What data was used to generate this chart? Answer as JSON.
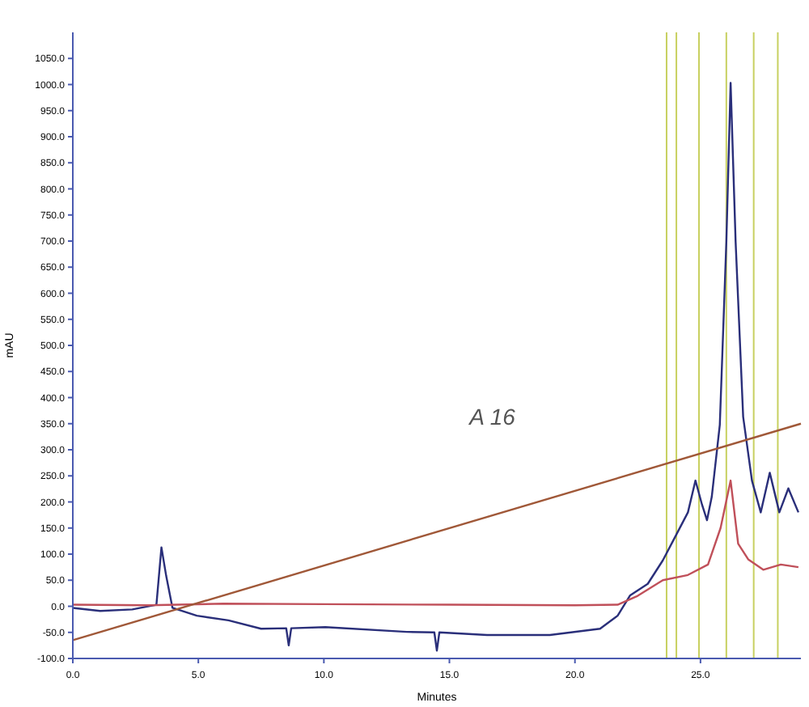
{
  "chart_data": {
    "type": "line",
    "xlabel": "Minutes",
    "ylabel": "mAU",
    "annotations": [
      "A 16"
    ],
    "xlim": [
      0,
      29
    ],
    "ylim": [
      -100,
      1100
    ],
    "xticks": [
      {
        "value": 0,
        "label": "0.0"
      },
      {
        "value": 5,
        "label": "5.0"
      },
      {
        "value": 10,
        "label": "10.0"
      },
      {
        "value": 15,
        "label": "15.0"
      },
      {
        "value": 20,
        "label": "20.0"
      },
      {
        "value": 25,
        "label": "25.0"
      }
    ],
    "yticks": [
      {
        "value": -100,
        "label": "-100.0"
      },
      {
        "value": -50,
        "label": "-50.0"
      },
      {
        "value": 0,
        "label": "0.0"
      },
      {
        "value": 50,
        "label": "50.0"
      },
      {
        "value": 100,
        "label": "100.0"
      },
      {
        "value": 150,
        "label": "150.0"
      },
      {
        "value": 200,
        "label": "200.0"
      },
      {
        "value": 250,
        "label": "250.0"
      },
      {
        "value": 300,
        "label": "300.0"
      },
      {
        "value": 350,
        "label": "350.0"
      },
      {
        "value": 400,
        "label": "400.0"
      },
      {
        "value": 450,
        "label": "450.0"
      },
      {
        "value": 500,
        "label": "500.0"
      },
      {
        "value": 550,
        "label": "550.0"
      },
      {
        "value": 600,
        "label": "600.0"
      },
      {
        "value": 650,
        "label": "650.0"
      },
      {
        "value": 700,
        "label": "700.0"
      },
      {
        "value": 750,
        "label": "750.0"
      },
      {
        "value": 800,
        "label": "800.0"
      },
      {
        "value": 850,
        "label": "850.0"
      },
      {
        "value": 900,
        "label": "900.0"
      },
      {
        "value": 950,
        "label": "950.0"
      },
      {
        "value": 1000,
        "label": "1000.0"
      },
      {
        "value": 1050,
        "label": "1050.0"
      }
    ],
    "grid": false,
    "marker": "none",
    "line_style": "solid",
    "ref_lines": [
      {
        "axis": "x",
        "value": 23.65,
        "color": "#c8d060"
      },
      {
        "axis": "x",
        "value": 24.04,
        "color": "#c8d060"
      },
      {
        "axis": "x",
        "value": 24.94,
        "color": "#c8d060"
      },
      {
        "axis": "x",
        "value": 26.03,
        "color": "#c8d060"
      },
      {
        "axis": "x",
        "value": 27.12,
        "color": "#c8d060"
      },
      {
        "axis": "x",
        "value": 28.08,
        "color": "#c8d060"
      }
    ],
    "series": [
      {
        "color": "#2a2f7a",
        "x": [
          0,
          1.09,
          2.37,
          3.33,
          3.53,
          3.72,
          3.97,
          4.94,
          6.2,
          7.5,
          8.5,
          8.6,
          8.7,
          10.06,
          13.3,
          14.4,
          14.5,
          14.6,
          16.5,
          19.0,
          21,
          21.7,
          22.2,
          22.9,
          23.5,
          24.0,
          24.5,
          24.8,
          25.06,
          25.26,
          25.45,
          25.77,
          26.03,
          26.2,
          26.4,
          26.7,
          27.05,
          27.4,
          27.76,
          28.14,
          28.5,
          28.9
        ],
        "values": [
          -3,
          -9,
          -6,
          3,
          113,
          58,
          -3,
          -18,
          -27,
          -43,
          -42,
          -75,
          -42,
          -40,
          -49,
          -50,
          -85,
          -50,
          -55,
          -55,
          -43,
          -18,
          21,
          43,
          88,
          134,
          180,
          241,
          195,
          165,
          210,
          348,
          698,
          1003,
          698,
          363,
          241,
          180,
          256,
          180,
          226,
          180
        ]
      },
      {
        "color": "#c0505a",
        "x": [
          0,
          3,
          6,
          10,
          15,
          20,
          21.7,
          22.5,
          23.5,
          24.5,
          25.3,
          25.8,
          26.2,
          26.5,
          26.9,
          27.5,
          28.2,
          28.9
        ],
        "values": [
          3,
          2,
          5,
          4,
          3,
          2,
          3,
          20,
          50,
          60,
          80,
          150,
          241,
          120,
          90,
          70,
          80,
          75
        ]
      },
      {
        "color": "#a05838",
        "x": [
          0,
          29
        ],
        "values": [
          -65,
          350
        ]
      }
    ]
  }
}
